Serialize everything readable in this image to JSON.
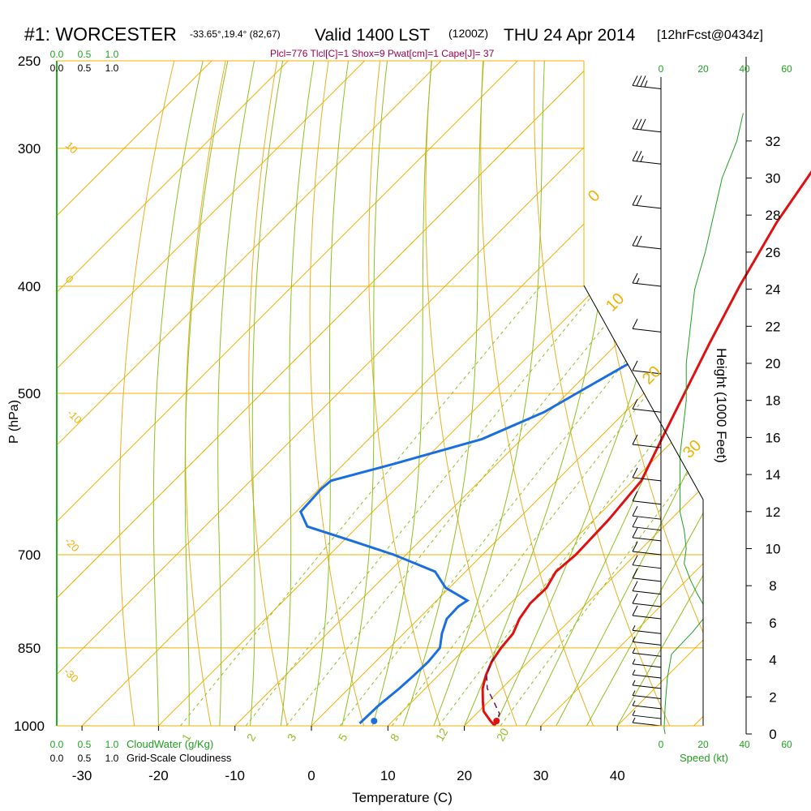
{
  "header": {
    "station": "#1: WORCESTER",
    "coords": "-33.65°,19.4° (82,67)",
    "valid": "Valid 1400 LST",
    "utc": "(1200Z)",
    "date": "THU 24 Apr 2014",
    "forecast": "[12hrFcst@0434z]",
    "indices": "Plcl=776 Tlcl[C]=1 Shox=9 Pwat[cm]=1 Cape[J]= 37"
  },
  "colors": {
    "temperature": "#e01010",
    "dewpoint": "#1a6fe0",
    "parcel": "#6b1050",
    "isobar": "#f0b000",
    "dry_adiabat": "#e8b020",
    "moist_adiabat": "#90c020",
    "mixing_ratio": "#90c020",
    "speed": "#20a020",
    "indices": "#a00050"
  },
  "chart_data": {
    "type": "line",
    "subtype": "skew-T log-P sounding",
    "xlabel": "Temperature (C)",
    "ylabel": "P (hPa)",
    "right_label": "Height (1000 Feet)",
    "x_ticks": [
      -30,
      -20,
      -10,
      0,
      10,
      20,
      30,
      40
    ],
    "p_ticks": [
      250,
      300,
      400,
      500,
      700,
      850,
      1000
    ],
    "height_ticks": [
      0,
      2,
      4,
      6,
      8,
      10,
      12,
      14,
      16,
      18,
      20,
      22,
      24,
      26,
      28,
      30,
      32
    ],
    "cloud_scale_top": [
      "0.0",
      "0.5",
      "1.0"
    ],
    "cloud_scale_bottom": [
      "0.0",
      "0.5",
      "1.0"
    ],
    "cloud_water_label": "CloudWater (g/Kg)",
    "cloudiness_label": "Grid-Scale Cloudiness",
    "speed_ticks": [
      "0",
      "20",
      "40",
      "60"
    ],
    "speed_label": "Speed (kt)",
    "dry_adiabat_labels": [
      "10",
      "0",
      "-10",
      "-20",
      "-30"
    ],
    "isotherm_labels_right": [
      "0",
      "10",
      "20",
      "30"
    ],
    "mixing_ratio_labels": [
      "1",
      "2",
      "3",
      "5",
      "8",
      "12",
      "20"
    ],
    "temperature_series": [
      [
        1000,
        24.0
      ],
      [
        990,
        22.8
      ],
      [
        970,
        20.6
      ],
      [
        950,
        19.2
      ],
      [
        925,
        17.5
      ],
      [
        900,
        16.2
      ],
      [
        875,
        15.2
      ],
      [
        850,
        14.6
      ],
      [
        825,
        14.3
      ],
      [
        800,
        13.2
      ],
      [
        775,
        12.6
      ],
      [
        750,
        12.7
      ],
      [
        725,
        11.8
      ],
      [
        700,
        12.2
      ],
      [
        650,
        11.9
      ],
      [
        600,
        11.1
      ],
      [
        550,
        8.3
      ],
      [
        500,
        5.3
      ],
      [
        450,
        2.0
      ],
      [
        400,
        -1.5
      ],
      [
        350,
        -5.0
      ],
      [
        300,
        -8.0
      ],
      [
        270,
        -9.5
      ]
    ],
    "dewpoint_series": [
      [
        995,
        6.0
      ],
      [
        960,
        6.1
      ],
      [
        925,
        6.6
      ],
      [
        900,
        6.8
      ],
      [
        875,
        6.9
      ],
      [
        850,
        6.6
      ],
      [
        825,
        5.0
      ],
      [
        800,
        3.7
      ],
      [
        780,
        3.6
      ],
      [
        770,
        4.0
      ],
      [
        750,
        -0.5
      ],
      [
        725,
        -4.0
      ],
      [
        700,
        -11.6
      ],
      [
        680,
        -18.9
      ],
      [
        660,
        -26.6
      ],
      [
        640,
        -29.4
      ],
      [
        610,
        -29.7
      ],
      [
        600,
        -29.5
      ],
      [
        580,
        -23.7
      ],
      [
        550,
        -15.2
      ],
      [
        520,
        -10.6
      ],
      [
        500,
        -8.8
      ],
      [
        470,
        -5.9
      ],
      [
        450,
        -5.2
      ],
      [
        400,
        -5.0
      ],
      [
        350,
        -5.2
      ],
      [
        300,
        -6.8
      ],
      [
        265,
        -7.4
      ]
    ],
    "parcel_series": [
      [
        1000,
        24.0
      ],
      [
        975,
        23.0
      ],
      [
        950,
        20.6
      ],
      [
        925,
        18.1
      ],
      [
        900,
        16.3
      ],
      [
        875,
        15.2
      ],
      [
        860,
        14.7
      ]
    ],
    "surface_temperature": 24.2,
    "surface_dewpoint": 8.2,
    "surface_pressure": 1000,
    "wind_speed_profile": [
      [
        0,
        2
      ],
      [
        0.3,
        1.5
      ],
      [
        1.5,
        2
      ],
      [
        3,
        3
      ],
      [
        4.3,
        5
      ],
      [
        5.5,
        15
      ],
      [
        6.2,
        20
      ],
      [
        7,
        20
      ],
      [
        7.6,
        17
      ],
      [
        8.3,
        14
      ],
      [
        9.2,
        11
      ],
      [
        10,
        12
      ],
      [
        11,
        11
      ],
      [
        12,
        9
      ],
      [
        13,
        9
      ],
      [
        14,
        9
      ],
      [
        15,
        9
      ],
      [
        16,
        10
      ],
      [
        17,
        11
      ],
      [
        18,
        12
      ],
      [
        19,
        12
      ],
      [
        20,
        12
      ],
      [
        22,
        14
      ],
      [
        24,
        16
      ],
      [
        26,
        21
      ],
      [
        28,
        25
      ],
      [
        30,
        29
      ],
      [
        32,
        36
      ],
      [
        33.5,
        39
      ]
    ],
    "wind_barbs": [
      [
        1000,
        5
      ],
      [
        985,
        5
      ],
      [
        965,
        5
      ],
      [
        945,
        5
      ],
      [
        925,
        5
      ],
      [
        905,
        5
      ],
      [
        885,
        5
      ],
      [
        865,
        5
      ],
      [
        845,
        5
      ],
      [
        825,
        5
      ],
      [
        800,
        10
      ],
      [
        780,
        10
      ],
      [
        760,
        10
      ],
      [
        740,
        10
      ],
      [
        720,
        10
      ],
      [
        700,
        10
      ],
      [
        680,
        10
      ],
      [
        665,
        10
      ],
      [
        650,
        10
      ],
      [
        630,
        10
      ],
      [
        600,
        10
      ],
      [
        560,
        10
      ],
      [
        520,
        10
      ],
      [
        480,
        10
      ],
      [
        440,
        10
      ],
      [
        400,
        15
      ],
      [
        370,
        20
      ],
      [
        340,
        20
      ],
      [
        310,
        25
      ],
      [
        290,
        30
      ],
      [
        265,
        35
      ]
    ]
  }
}
